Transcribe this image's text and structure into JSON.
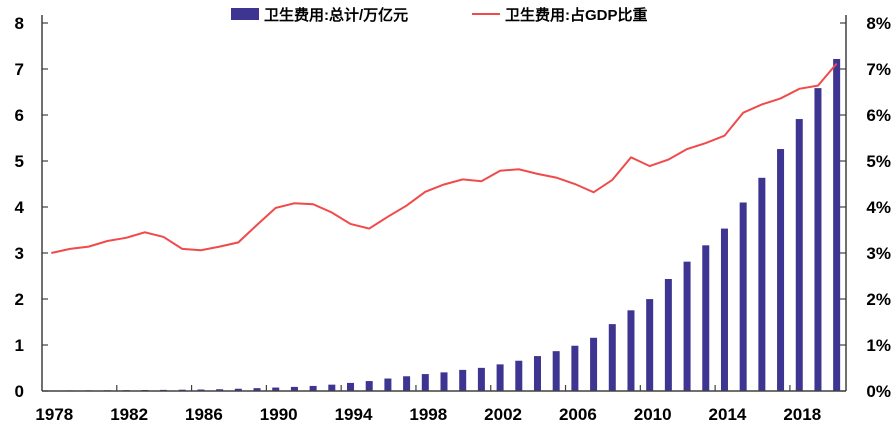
{
  "chart_data": {
    "type": "bar+line",
    "legend_position": "top",
    "grid": false,
    "categories": [
      1978,
      1979,
      1980,
      1981,
      1982,
      1983,
      1984,
      1985,
      1986,
      1987,
      1988,
      1989,
      1990,
      1991,
      1992,
      1993,
      1994,
      1995,
      1996,
      1997,
      1998,
      1999,
      2000,
      2001,
      2002,
      2003,
      2004,
      2005,
      2006,
      2007,
      2008,
      2009,
      2010,
      2011,
      2012,
      2013,
      2014,
      2015,
      2016,
      2017,
      2018,
      2019,
      2020
    ],
    "x_tick_labels": [
      "1978",
      "1982",
      "1986",
      "1990",
      "1994",
      "1998",
      "2002",
      "2006",
      "2010",
      "2014",
      "2018"
    ],
    "left_axis": {
      "ylim": [
        0,
        8
      ],
      "tick_labels": [
        "0",
        "1",
        "2",
        "3",
        "4",
        "5",
        "6",
        "7",
        "8"
      ]
    },
    "right_axis": {
      "ylim": [
        0,
        8
      ],
      "tick_labels": [
        "0%",
        "1%",
        "2%",
        "3%",
        "4%",
        "5%",
        "6%",
        "7%",
        "8%"
      ]
    },
    "series": [
      {
        "name": "卫生费用:总计/万亿元",
        "type": "bar",
        "axis": "left",
        "color": "#3e3491",
        "values": [
          0.011,
          0.013,
          0.014,
          0.016,
          0.018,
          0.021,
          0.024,
          0.028,
          0.032,
          0.038,
          0.049,
          0.062,
          0.075,
          0.089,
          0.11,
          0.138,
          0.176,
          0.216,
          0.271,
          0.32,
          0.368,
          0.405,
          0.459,
          0.503,
          0.579,
          0.658,
          0.759,
          0.866,
          0.984,
          1.157,
          1.454,
          1.754,
          1.998,
          2.435,
          2.812,
          3.167,
          3.531,
          4.098,
          4.635,
          5.26,
          5.912,
          6.584,
          7.218
        ]
      },
      {
        "name": "卫生费用:占GDP比重",
        "type": "line",
        "axis": "right",
        "unit": "%",
        "color": "#f04a4a",
        "values": [
          3.0,
          3.09,
          3.14,
          3.26,
          3.33,
          3.45,
          3.35,
          3.09,
          3.06,
          3.14,
          3.23,
          3.61,
          3.98,
          4.08,
          4.06,
          3.88,
          3.63,
          3.53,
          3.79,
          4.03,
          4.33,
          4.49,
          4.6,
          4.56,
          4.79,
          4.82,
          4.72,
          4.64,
          4.5,
          4.32,
          4.59,
          5.08,
          4.89,
          5.03,
          5.26,
          5.39,
          5.55,
          6.05,
          6.23,
          6.36,
          6.57,
          6.64,
          7.12
        ]
      }
    ]
  }
}
